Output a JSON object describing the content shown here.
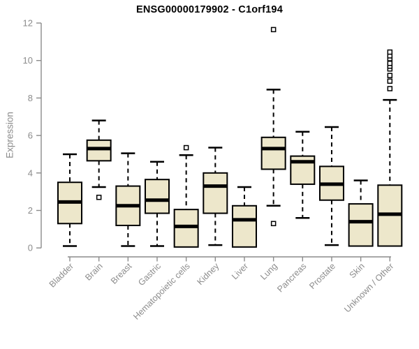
{
  "chart_data": {
    "type": "boxplot",
    "title": "ENSG00000179902 - C1orf194",
    "ylabel": "Expression",
    "xlabel": "",
    "ylim": [
      0,
      12
    ],
    "yticks": [
      0,
      2,
      4,
      6,
      8,
      10,
      12
    ],
    "grid": false,
    "legend": null,
    "categories": [
      "Bladder",
      "Brain",
      "Breast",
      "Gastric",
      "Hematopoietic cells",
      "Kidney",
      "Liver",
      "Lung",
      "Pancreas",
      "Prostate",
      "Skin",
      "Unknown / Other"
    ],
    "series": [
      {
        "label": "Bladder",
        "whisker_low": 0.1,
        "q1": 1.3,
        "median": 2.45,
        "q3": 3.5,
        "whisker_high": 5.0,
        "outliers": []
      },
      {
        "label": "Brain",
        "whisker_low": 3.25,
        "q1": 4.65,
        "median": 5.3,
        "q3": 5.75,
        "whisker_high": 6.8,
        "outliers": [
          2.7
        ]
      },
      {
        "label": "Breast",
        "whisker_low": 0.1,
        "q1": 1.2,
        "median": 2.25,
        "q3": 3.3,
        "whisker_high": 5.05,
        "outliers": []
      },
      {
        "label": "Gastric",
        "whisker_low": 0.1,
        "q1": 1.85,
        "median": 2.55,
        "q3": 3.65,
        "whisker_high": 4.6,
        "outliers": []
      },
      {
        "label": "Hematopoietic cells",
        "whisker_low": 0.05,
        "q1": 0.05,
        "median": 1.15,
        "q3": 2.05,
        "whisker_high": 4.95,
        "outliers": [
          5.35
        ]
      },
      {
        "label": "Kidney",
        "whisker_low": 0.15,
        "q1": 1.85,
        "median": 3.3,
        "q3": 4.0,
        "whisker_high": 5.35,
        "outliers": []
      },
      {
        "label": "Liver",
        "whisker_low": 0.05,
        "q1": 0.05,
        "median": 1.5,
        "q3": 2.25,
        "whisker_high": 3.25,
        "outliers": []
      },
      {
        "label": "Lung",
        "whisker_low": 2.25,
        "q1": 4.2,
        "median": 5.3,
        "q3": 5.9,
        "whisker_high": 8.45,
        "outliers": [
          11.65,
          1.3
        ]
      },
      {
        "label": "Pancreas",
        "whisker_low": 1.6,
        "q1": 3.4,
        "median": 4.6,
        "q3": 4.9,
        "whisker_high": 6.2,
        "outliers": []
      },
      {
        "label": "Prostate",
        "whisker_low": 0.15,
        "q1": 2.55,
        "median": 3.4,
        "q3": 4.35,
        "whisker_high": 6.45,
        "outliers": []
      },
      {
        "label": "Skin",
        "whisker_low": 0.1,
        "q1": 0.1,
        "median": 1.4,
        "q3": 2.35,
        "whisker_high": 3.6,
        "outliers": []
      },
      {
        "label": "Unknown / Other",
        "whisker_low": 0.1,
        "q1": 0.1,
        "median": 1.8,
        "q3": 3.35,
        "whisker_high": 7.9,
        "outliers": [
          8.5,
          8.9,
          9.2,
          9.55,
          9.7,
          9.85,
          10.1,
          10.25,
          10.45
        ]
      }
    ]
  },
  "colors": {
    "box_fill": "#EDE7CB",
    "box_border": "#000000",
    "median": "#000000",
    "whisker": "#000000",
    "outlier_fill": "#ffffff",
    "outlier_border": "#000000",
    "axis": "#8B8B8B",
    "tick_label": "#8C8C8C",
    "title": "#000000"
  }
}
